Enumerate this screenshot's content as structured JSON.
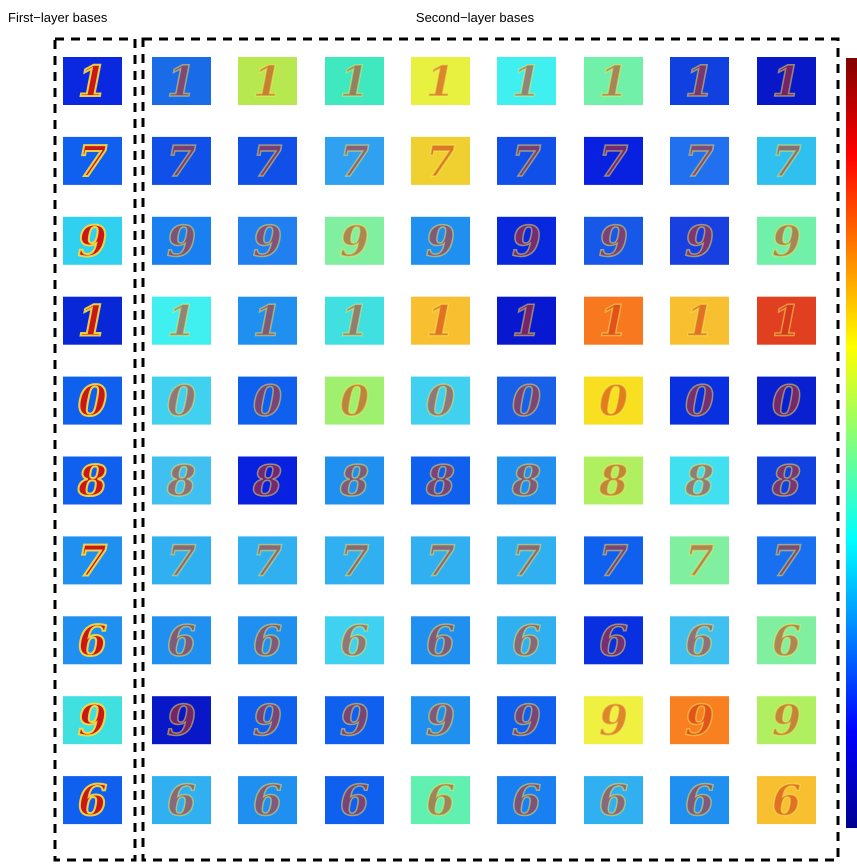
{
  "header": {
    "left_title": "First−layer bases",
    "right_title": "Second−layer bases"
  },
  "grid": {
    "rows": [
      {
        "digit": "1",
        "tiles": [
          "#0a28e0",
          "#1a6be8",
          "#b8e850",
          "#40e8c0",
          "#e8f040",
          "#40f0f0",
          "#70f0a8",
          "#1040e0",
          "#0818c8"
        ]
      },
      {
        "digit": "7",
        "tiles": [
          "#1060f0",
          "#1050e8",
          "#1050e8",
          "#30a0f0",
          "#f0d030",
          "#1050e8",
          "#0820e0",
          "#2070f0",
          "#30c0f0"
        ]
      },
      {
        "digit": "9",
        "tiles": [
          "#30d0f0",
          "#1880f0",
          "#2080f0",
          "#80f0a0",
          "#2090f0",
          "#0828e0",
          "#1858e8",
          "#1840e0",
          "#70f0a8"
        ]
      },
      {
        "digit": "1",
        "tiles": [
          "#0828d8",
          "#40f0f0",
          "#2090f0",
          "#40e0e0",
          "#f8c030",
          "#0818d0",
          "#f87820",
          "#f8c030",
          "#e04020"
        ]
      },
      {
        "digit": "0",
        "tiles": [
          "#1060f0",
          "#40d0f0",
          "#1060f0",
          "#a0f070",
          "#40d0f0",
          "#1860e8",
          "#f8e020",
          "#0830e0",
          "#0820d0"
        ]
      },
      {
        "digit": "8",
        "tiles": [
          "#1060f0",
          "#40c0f0",
          "#0820e0",
          "#2090f0",
          "#1060f0",
          "#2090f0",
          "#b0f060",
          "#40e0f0",
          "#1040e0"
        ]
      },
      {
        "digit": "7",
        "tiles": [
          "#2090f0",
          "#30b0f0",
          "#30b0f0",
          "#30b0f0",
          "#30b0f0",
          "#30b0f0",
          "#1060f0",
          "#80f0a0",
          "#1870f0"
        ]
      },
      {
        "digit": "6",
        "tiles": [
          "#2090f0",
          "#2090f0",
          "#2090f0",
          "#40d0f0",
          "#2090f0",
          "#30b0f0",
          "#0830e0",
          "#40c0f0",
          "#80f0a0"
        ]
      },
      {
        "digit": "9",
        "tiles": [
          "#40e0e0",
          "#0818c8",
          "#1060f0",
          "#1060f0",
          "#2090f0",
          "#1060f0",
          "#f0f040",
          "#f88020",
          "#b0f060"
        ]
      },
      {
        "digit": "6",
        "tiles": [
          "#1060f0",
          "#30b0f0",
          "#2090f0",
          "#1060f0",
          "#60f0b0",
          "#1880f0",
          "#30b0f0",
          "#2090f0",
          "#f8c030"
        ]
      }
    ]
  }
}
